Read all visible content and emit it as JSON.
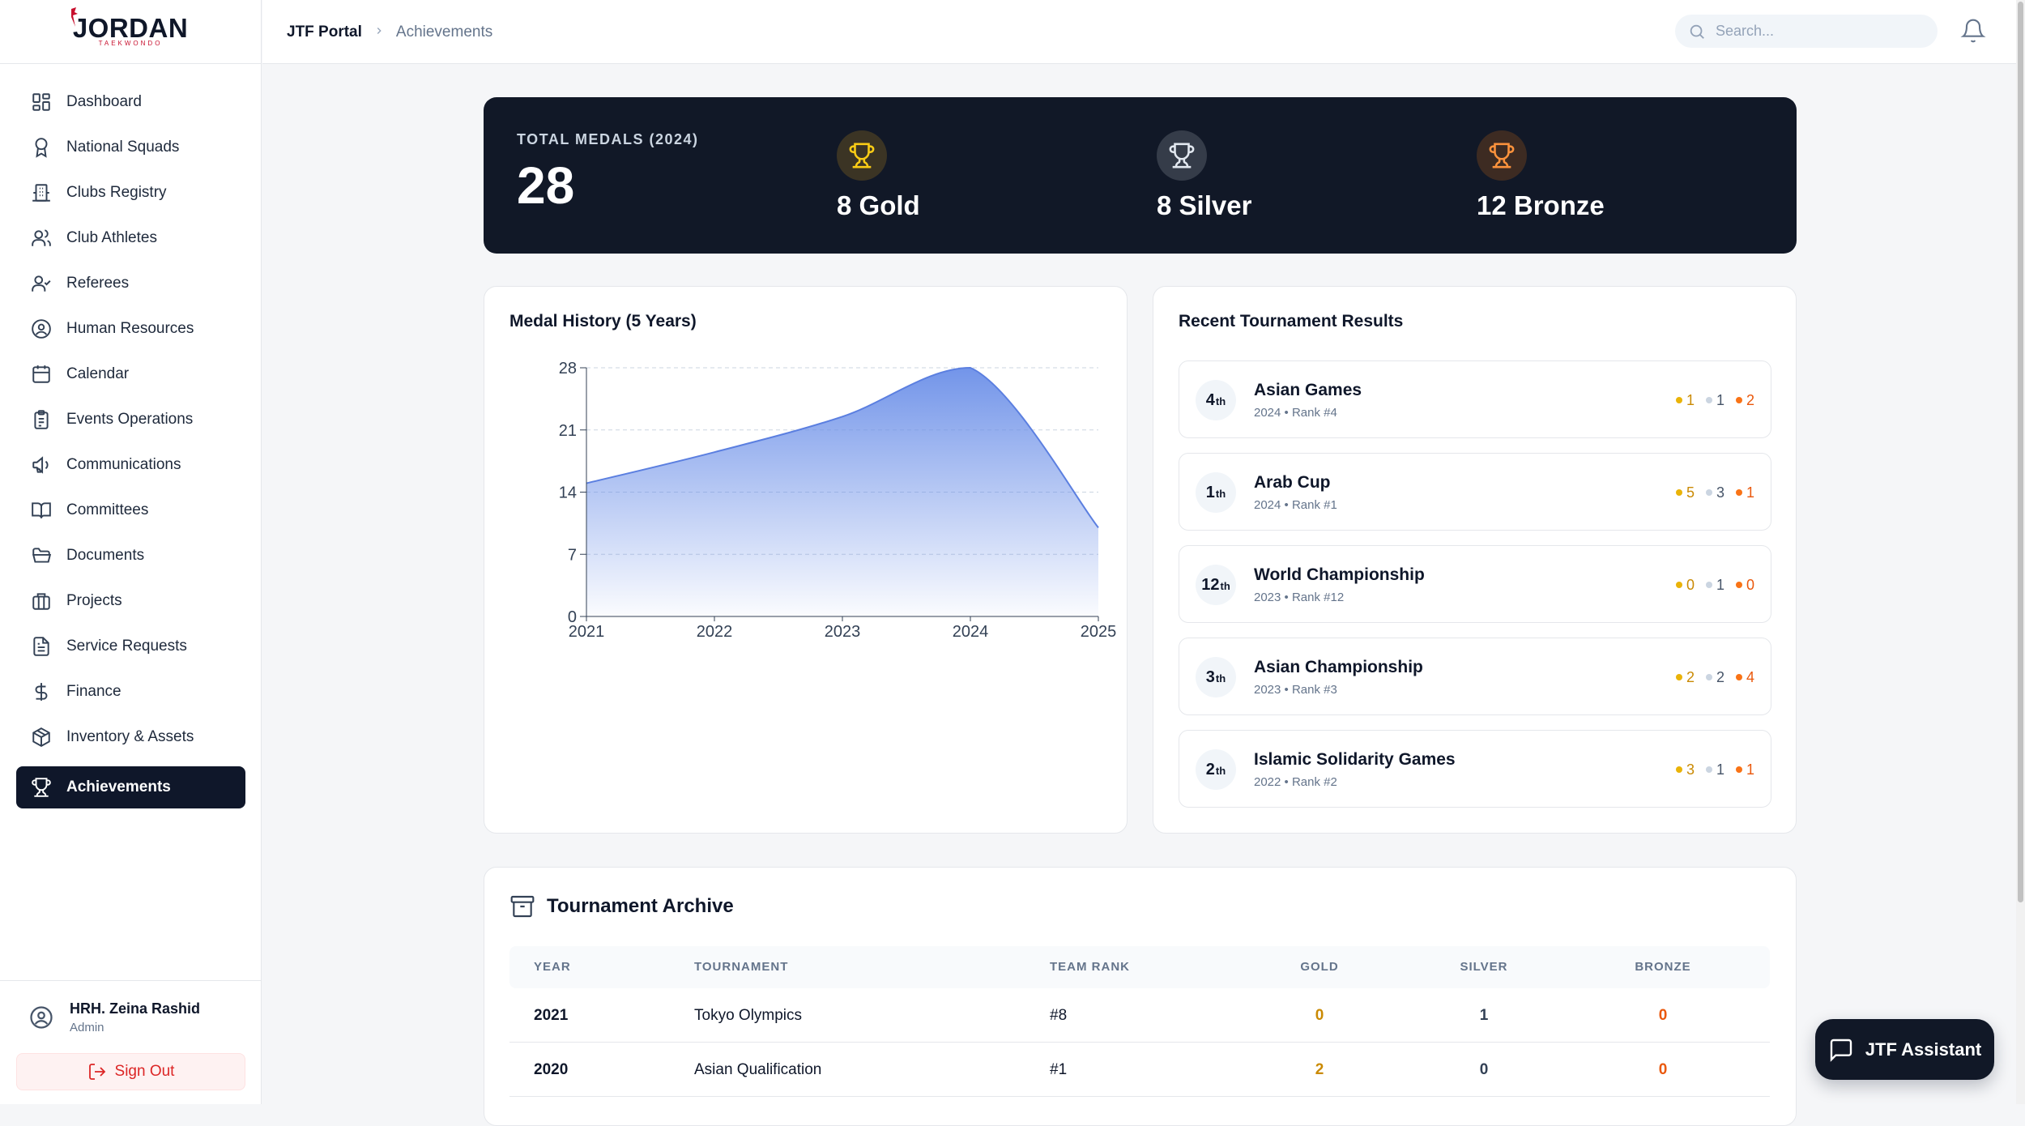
{
  "brand": {
    "logo_text": "JORDAN",
    "logo_sub": "TAEKWONDO"
  },
  "sidebar": {
    "items": [
      {
        "label": "Dashboard",
        "icon": "dashboard-icon"
      },
      {
        "label": "National Squads",
        "icon": "award-icon"
      },
      {
        "label": "Clubs Registry",
        "icon": "building-icon"
      },
      {
        "label": "Club Athletes",
        "icon": "users-icon"
      },
      {
        "label": "Referees",
        "icon": "user-check-icon"
      },
      {
        "label": "Human Resources",
        "icon": "user-circle-icon"
      },
      {
        "label": "Calendar",
        "icon": "calendar-icon"
      },
      {
        "label": "Events Operations",
        "icon": "clipboard-icon"
      },
      {
        "label": "Communications",
        "icon": "megaphone-icon"
      },
      {
        "label": "Committees",
        "icon": "book-icon"
      },
      {
        "label": "Documents",
        "icon": "folder-icon"
      },
      {
        "label": "Projects",
        "icon": "briefcase-icon"
      },
      {
        "label": "Service Requests",
        "icon": "file-text-icon"
      },
      {
        "label": "Finance",
        "icon": "dollar-icon"
      },
      {
        "label": "Inventory & Assets",
        "icon": "package-icon"
      },
      {
        "label": "Achievements",
        "icon": "trophy-icon",
        "active": true
      }
    ],
    "user": {
      "name": "HRH. Zeina Rashid",
      "role": "Admin"
    },
    "signout_label": "Sign Out"
  },
  "topbar": {
    "breadcrumb_root": "JTF Portal",
    "breadcrumb_current": "Achievements",
    "search_placeholder": "Search..."
  },
  "hero": {
    "total_label": "TOTAL MEDALS (2024)",
    "total_value": "28",
    "gold": "8 Gold",
    "silver": "8 Silver",
    "bronze": "12 Bronze"
  },
  "chart_title": "Medal History (5 Years)",
  "chart_data": {
    "type": "area",
    "title": "Medal History (5 Years)",
    "x": [
      "2021",
      "2022",
      "2023",
      "2024",
      "2025"
    ],
    "values": [
      15,
      18.5,
      22.5,
      28,
      10
    ],
    "yticks": [
      0,
      7,
      14,
      21,
      28
    ],
    "ylim": [
      0,
      28
    ],
    "grid": true,
    "color": "#6b8fe8"
  },
  "results": {
    "title": "Recent Tournament Results",
    "items": [
      {
        "rank": "4",
        "suffix": "th",
        "name": "Asian Games",
        "meta": "2024 • Rank #4",
        "gold": "1",
        "silver": "1",
        "bronze": "2"
      },
      {
        "rank": "1",
        "suffix": "th",
        "name": "Arab Cup",
        "meta": "2024 • Rank #1",
        "gold": "5",
        "silver": "3",
        "bronze": "1"
      },
      {
        "rank": "12",
        "suffix": "th",
        "name": "World Championship",
        "meta": "2023 • Rank #12",
        "gold": "0",
        "silver": "1",
        "bronze": "0"
      },
      {
        "rank": "3",
        "suffix": "th",
        "name": "Asian Championship",
        "meta": "2023 • Rank #3",
        "gold": "2",
        "silver": "2",
        "bronze": "4"
      },
      {
        "rank": "2",
        "suffix": "th",
        "name": "Islamic Solidarity Games",
        "meta": "2022 • Rank #2",
        "gold": "3",
        "silver": "1",
        "bronze": "1"
      }
    ]
  },
  "archive": {
    "title": "Tournament Archive",
    "columns": [
      "YEAR",
      "TOURNAMENT",
      "TEAM RANK",
      "GOLD",
      "SILVER",
      "BRONZE"
    ],
    "rows": [
      {
        "year": "2021",
        "tournament": "Tokyo Olympics",
        "rank": "#8",
        "gold": "0",
        "silver": "1",
        "bronze": "0"
      },
      {
        "year": "2020",
        "tournament": "Asian Qualification",
        "rank": "#1",
        "gold": "2",
        "silver": "0",
        "bronze": "0"
      }
    ]
  },
  "assistant_label": "JTF Assistant",
  "colors": {
    "gold": "#eab308",
    "silver": "#cbd5e1",
    "bronze": "#f97316",
    "gold_text": "#ca8a04",
    "silver_text": "#475569",
    "bronze_text": "#ea580c",
    "dark": "#111827"
  }
}
